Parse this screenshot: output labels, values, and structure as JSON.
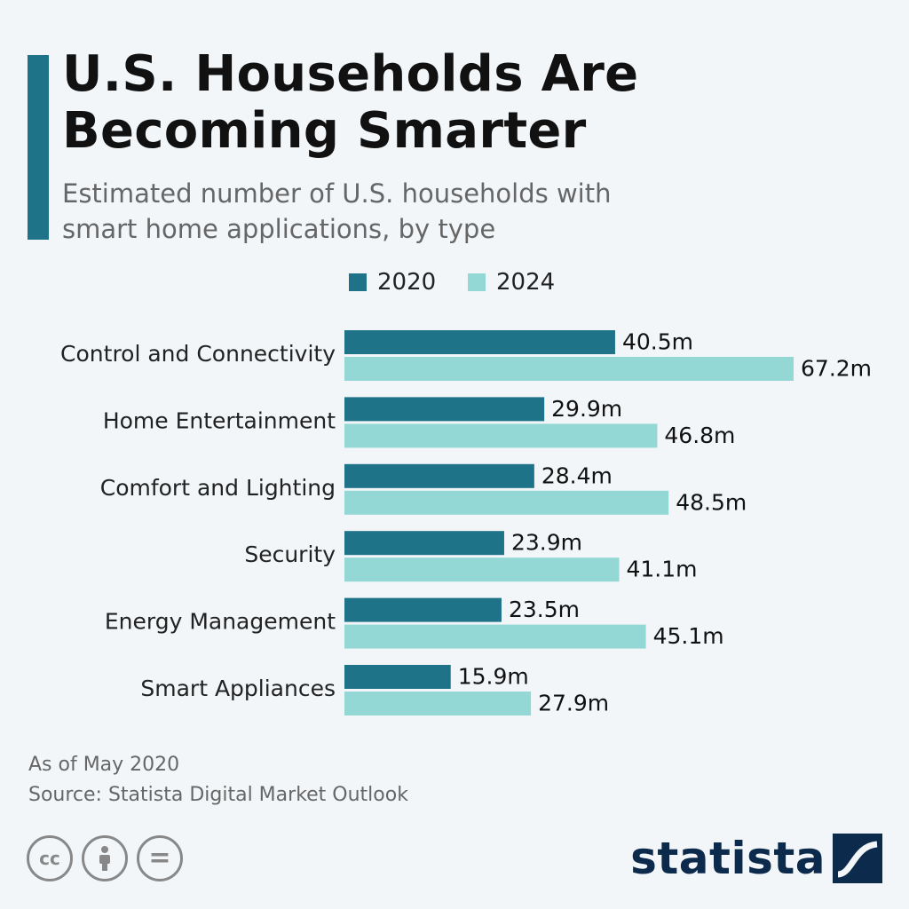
{
  "header": {
    "title_line1": "U.S. Households Are",
    "title_line2": "Becoming Smarter",
    "subtitle_line1": "Estimated number of U.S. households with",
    "subtitle_line2": "smart home applications, by type"
  },
  "colors": {
    "accent": "#1f7389",
    "series_2020": "#1f7389",
    "series_2024": "#94d8d6",
    "logo": "#0c2a4b"
  },
  "chart_data": {
    "type": "bar",
    "orientation": "horizontal",
    "categories": [
      "Control and Connectivity",
      "Home Entertainment",
      "Comfort and Lighting",
      "Security",
      "Energy Management",
      "Smart Appliances"
    ],
    "series": [
      {
        "name": "2020",
        "values": [
          40.5,
          29.9,
          28.4,
          23.9,
          23.5,
          15.9
        ]
      },
      {
        "name": "2024",
        "values": [
          67.2,
          46.8,
          48.5,
          41.1,
          45.1,
          27.9
        ]
      }
    ],
    "value_labels": [
      [
        "40.5m",
        "29.9m",
        "28.4m",
        "23.9m",
        "23.5m",
        "15.9m"
      ],
      [
        "67.2m",
        "46.8m",
        "48.5m",
        "41.1m",
        "45.1m",
        "27.9m"
      ]
    ],
    "unit": "m",
    "legend_position": "top",
    "grid": false
  },
  "footer": {
    "note": "As of May 2020",
    "source": "Source: Statista Digital Market Outlook",
    "license_icons": [
      "cc-icon",
      "attribution-icon",
      "no-derivatives-icon"
    ],
    "cc_label": "cc",
    "nd_label": "=",
    "brand": "statista"
  }
}
